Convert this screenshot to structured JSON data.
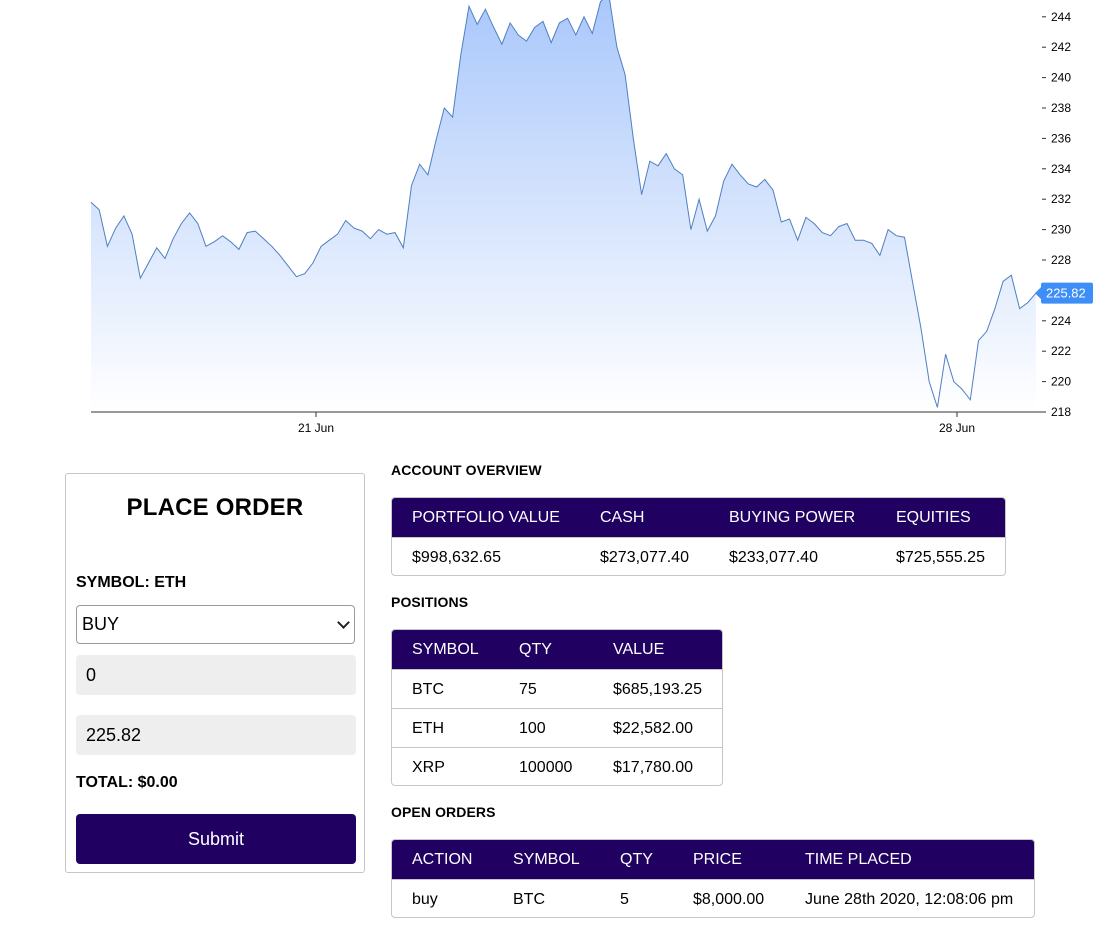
{
  "chart": {
    "price_axis_ticks": [
      "244",
      "242",
      "240",
      "238",
      "236",
      "234",
      "232",
      "230",
      "228",
      "226",
      "224",
      "222",
      "220",
      "218"
    ],
    "date_axis_ticks": [
      "21 Jun",
      "28 Jun"
    ],
    "last_price_label": "225.82",
    "colors": {
      "line": "#4f7fc0",
      "fill_top": "#a9c7fb",
      "fill_bottom": "#ffffff",
      "badge": "#3e8ef7"
    }
  },
  "chart_data": {
    "type": "area",
    "title": "",
    "xlabel": "",
    "ylabel": "",
    "ylim": [
      218,
      245
    ],
    "x_ticks": [
      "21 Jun",
      "28 Jun"
    ],
    "last_value": 225.82,
    "series": [
      {
        "values": [
          231.8,
          231.3,
          228.9,
          230.1,
          230.9,
          229.7,
          226.8,
          227.8,
          228.8,
          228.1,
          229.4,
          230.4,
          231.1,
          230.4,
          228.9,
          229.2,
          229.6,
          229.2,
          228.7,
          229.8,
          229.9,
          229.4,
          228.9,
          228.3,
          227.6,
          226.9,
          227.1,
          227.8,
          228.9,
          229.3,
          229.7,
          230.6,
          230.1,
          229.9,
          229.4,
          230.0,
          229.7,
          229.8,
          228.8,
          232.9,
          234.3,
          233.6,
          235.9,
          238.0,
          237.4,
          241.5,
          244.7,
          243.5,
          244.5,
          243.3,
          242.2,
          243.6,
          242.8,
          242.4,
          243.3,
          243.7,
          242.3,
          243.6,
          243.9,
          242.8,
          244.0,
          242.9,
          245.0,
          245.5,
          242.0,
          240.2,
          236.0,
          232.3,
          234.5,
          234.2,
          235.0,
          234.0,
          233.6,
          230.0,
          232.0,
          229.9,
          230.9,
          233.2,
          234.3,
          233.6,
          233.0,
          232.8,
          233.3,
          232.6,
          230.5,
          230.7,
          229.3,
          230.8,
          230.4,
          229.8,
          229.6,
          230.2,
          230.4,
          229.3,
          229.3,
          229.1,
          228.3,
          230.0,
          229.6,
          229.5,
          226.5,
          223.5,
          220.0,
          218.3,
          221.8,
          220.0,
          219.5,
          218.8,
          222.7,
          223.3,
          224.8,
          226.6,
          227.0,
          224.8,
          225.2,
          225.82
        ]
      }
    ]
  },
  "order_form": {
    "title": "PLACE ORDER",
    "symbol_label": "SYMBOL: ETH",
    "side_value": "BUY",
    "quantity_value": "0",
    "price_value": "225.82",
    "total_label": "TOTAL: $0.00",
    "submit_label": "Submit"
  },
  "account_overview": {
    "title": "ACCOUNT OVERVIEW",
    "headers": [
      "PORTFOLIO VALUE",
      "CASH",
      "BUYING POWER",
      "EQUITIES"
    ],
    "values": [
      "$998,632.65",
      "$273,077.40",
      "$233,077.40",
      "$725,555.25"
    ]
  },
  "positions": {
    "title": "POSITIONS",
    "headers": [
      "SYMBOL",
      "QTY",
      "VALUE"
    ],
    "rows": [
      [
        "BTC",
        "75",
        "$685,193.25"
      ],
      [
        "ETH",
        "100",
        "$22,582.00"
      ],
      [
        "XRP",
        "100000",
        "$17,780.00"
      ]
    ]
  },
  "open_orders": {
    "title": "OPEN ORDERS",
    "headers": [
      "ACTION",
      "SYMBOL",
      "QTY",
      "PRICE",
      "TIME PLACED"
    ],
    "rows": [
      [
        "buy",
        "BTC",
        "5",
        "$8,000.00",
        "June 28th 2020, 12:08:06 pm"
      ]
    ]
  },
  "colors": {
    "header_bg": "#200060",
    "button_bg": "#200060",
    "border": "#c6c6c6",
    "input_bg": "#eeeeee"
  }
}
